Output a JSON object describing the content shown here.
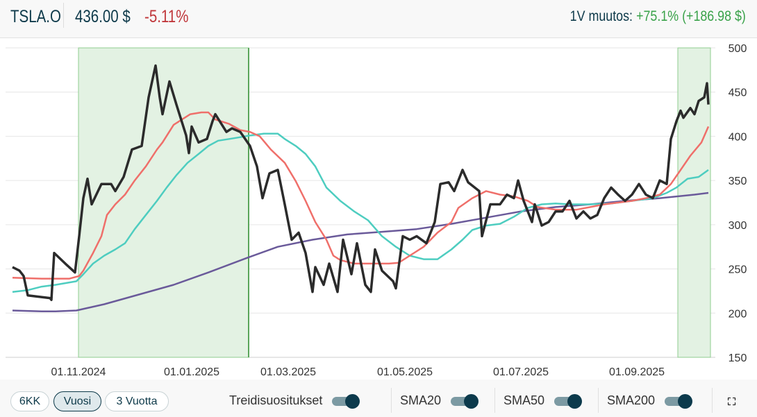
{
  "header": {
    "ticker": "TSLA.O",
    "price": "436.00 $",
    "change": "-5.11%",
    "year_change_label": "1V muutos:",
    "year_change_value": "+75.1% (+186.98 $)"
  },
  "colors": {
    "price": "#2b2b2b",
    "sma20": "#ef6f6a",
    "sma50": "#4ecdc0",
    "sma200": "#6a5a9a",
    "recommendation": "#cfe8cf",
    "up": "#3aa24a",
    "down": "#c0363a"
  },
  "controls": {
    "ranges": [
      {
        "label": "6KK",
        "active": false
      },
      {
        "label": "Vuosi",
        "active": true
      },
      {
        "label": "3 Vuotta",
        "active": false
      }
    ],
    "toggles": [
      {
        "label": "Treidisuositukset",
        "on": true
      },
      {
        "label": "SMA20",
        "on": true
      },
      {
        "label": "SMA50",
        "on": true
      },
      {
        "label": "SMA200",
        "on": true
      }
    ],
    "fullscreen_icon": "expand-icon"
  },
  "chart_data": {
    "type": "line",
    "x_unit": "trading day index",
    "xlim": [
      -2.5,
      253
    ],
    "ylim": [
      150,
      500
    ],
    "y_ticks": [
      "500",
      "450",
      "400",
      "350",
      "300",
      "250",
      "200",
      "150"
    ],
    "x_ticks": [
      {
        "label": "01.11.2024",
        "x": 23.75
      },
      {
        "label": "01.01.2025",
        "x": 64.5
      },
      {
        "label": "01.03.2025",
        "x": 99.25
      },
      {
        "label": "01.05.2025",
        "x": 141.25
      },
      {
        "label": "01.07.2025",
        "x": 183
      },
      {
        "label": "01.09.2025",
        "x": 224.75
      }
    ],
    "recommendation_periods": [
      [
        23.75,
        85
      ],
      [
        239.5,
        251.25
      ]
    ],
    "series": [
      {
        "name": "SMA200",
        "color": "#6a5a9a",
        "points": [
          [
            0,
            203
          ],
          [
            10.5,
            202
          ],
          [
            15.5,
            202
          ],
          [
            23,
            203
          ],
          [
            33,
            210
          ],
          [
            45.5,
            221
          ],
          [
            58,
            232
          ],
          [
            70.5,
            246
          ],
          [
            84,
            262
          ],
          [
            95.5,
            275
          ],
          [
            108,
            283
          ],
          [
            120.5,
            289
          ],
          [
            133,
            292
          ],
          [
            145.5,
            295
          ],
          [
            158,
            301
          ],
          [
            170.5,
            308
          ],
          [
            183,
            315
          ],
          [
            195.5,
            320
          ],
          [
            208,
            323
          ],
          [
            220.5,
            327
          ],
          [
            233,
            330
          ],
          [
            245.5,
            334
          ],
          [
            250.5,
            336
          ]
        ]
      },
      {
        "name": "SMA50",
        "color": "#4ecdc0",
        "points": [
          [
            0,
            224
          ],
          [
            5.5,
            226
          ],
          [
            10.5,
            230
          ],
          [
            15.5,
            232
          ],
          [
            23,
            236
          ],
          [
            25.5,
            244
          ],
          [
            29,
            256
          ],
          [
            33,
            265
          ],
          [
            37,
            272
          ],
          [
            40.5,
            279
          ],
          [
            44,
            295
          ],
          [
            48,
            311
          ],
          [
            52,
            327
          ],
          [
            55.5,
            342
          ],
          [
            59,
            356
          ],
          [
            63,
            370
          ],
          [
            67,
            380
          ],
          [
            70.5,
            389
          ],
          [
            74,
            395
          ],
          [
            78,
            397
          ],
          [
            82,
            399
          ],
          [
            85.5,
            401
          ],
          [
            90.5,
            403
          ],
          [
            95.5,
            403
          ],
          [
            98,
            397
          ],
          [
            102,
            389
          ],
          [
            105.5,
            380
          ],
          [
            109,
            366
          ],
          [
            113,
            342
          ],
          [
            118,
            327
          ],
          [
            123,
            315
          ],
          [
            128,
            305
          ],
          [
            133,
            287
          ],
          [
            138,
            275
          ],
          [
            143,
            265
          ],
          [
            148,
            261
          ],
          [
            153,
            261
          ],
          [
            158,
            272
          ],
          [
            162,
            283
          ],
          [
            165.5,
            294
          ],
          [
            170.5,
            299
          ],
          [
            175.5,
            301
          ],
          [
            180.5,
            309
          ],
          [
            185.5,
            319
          ],
          [
            190.5,
            323
          ],
          [
            195.5,
            324
          ],
          [
            200.5,
            323
          ],
          [
            208,
            323
          ],
          [
            215.5,
            324
          ],
          [
            223,
            327
          ],
          [
            230.5,
            330
          ],
          [
            235.5,
            336
          ],
          [
            239,
            342
          ],
          [
            243,
            352
          ],
          [
            247,
            354
          ],
          [
            250.5,
            362
          ]
        ]
      },
      {
        "name": "SMA20",
        "color": "#ef6f6a",
        "points": [
          [
            0,
            240
          ],
          [
            10.5,
            239
          ],
          [
            20.5,
            239
          ],
          [
            24,
            242
          ],
          [
            25.5,
            248
          ],
          [
            29,
            268
          ],
          [
            32,
            287
          ],
          [
            34,
            311
          ],
          [
            37,
            323
          ],
          [
            40.5,
            334
          ],
          [
            44,
            350
          ],
          [
            48,
            366
          ],
          [
            52,
            385
          ],
          [
            54,
            393
          ],
          [
            58,
            413
          ],
          [
            61,
            419
          ],
          [
            64,
            425
          ],
          [
            68,
            427
          ],
          [
            70.5,
            427
          ],
          [
            73,
            419
          ],
          [
            78,
            414
          ],
          [
            82,
            407
          ],
          [
            85.5,
            405
          ],
          [
            89,
            400
          ],
          [
            93,
            385
          ],
          [
            98,
            370
          ],
          [
            102,
            349
          ],
          [
            105.5,
            327
          ],
          [
            109,
            303
          ],
          [
            113,
            283
          ],
          [
            115.5,
            265
          ],
          [
            118,
            260
          ],
          [
            123,
            256
          ],
          [
            130.5,
            256
          ],
          [
            135.5,
            256
          ],
          [
            139,
            257
          ],
          [
            143,
            265
          ],
          [
            148,
            275
          ],
          [
            153,
            291
          ],
          [
            158,
            303
          ],
          [
            160.5,
            319
          ],
          [
            165.5,
            330
          ],
          [
            170.5,
            338
          ],
          [
            175.5,
            334
          ],
          [
            180.5,
            332
          ],
          [
            185.5,
            327
          ],
          [
            189,
            320
          ],
          [
            195.5,
            317
          ],
          [
            203,
            317
          ],
          [
            208,
            320
          ],
          [
            213,
            323
          ],
          [
            218,
            325
          ],
          [
            223,
            327
          ],
          [
            228,
            330
          ],
          [
            233,
            334
          ],
          [
            237,
            346
          ],
          [
            240.5,
            362
          ],
          [
            244,
            378
          ],
          [
            248,
            393
          ],
          [
            250.5,
            411
          ]
        ]
      },
      {
        "name": "TSLA.O",
        "color": "#2b2b2b",
        "points": [
          [
            0,
            252
          ],
          [
            2.5,
            248
          ],
          [
            4,
            242
          ],
          [
            5.5,
            220
          ],
          [
            13.5,
            217
          ],
          [
            14,
            215
          ],
          [
            15,
            268
          ],
          [
            19,
            256
          ],
          [
            22.5,
            246
          ],
          [
            24,
            287
          ],
          [
            25.5,
            330
          ],
          [
            27,
            352
          ],
          [
            28.5,
            323
          ],
          [
            32,
            346
          ],
          [
            35.5,
            346
          ],
          [
            37,
            338
          ],
          [
            40,
            354
          ],
          [
            43,
            385
          ],
          [
            46.5,
            389
          ],
          [
            49,
            444
          ],
          [
            51.5,
            480
          ],
          [
            53,
            444
          ],
          [
            54,
            425
          ],
          [
            56.5,
            462
          ],
          [
            59,
            436
          ],
          [
            62.5,
            401
          ],
          [
            63.5,
            381
          ],
          [
            64.5,
            411
          ],
          [
            67,
            393
          ],
          [
            70,
            397
          ],
          [
            72,
            417
          ],
          [
            73,
            425
          ],
          [
            77,
            405
          ],
          [
            79,
            409
          ],
          [
            82,
            405
          ],
          [
            85.5,
            389
          ],
          [
            88,
            366
          ],
          [
            90,
            330
          ],
          [
            92.5,
            358
          ],
          [
            95.5,
            362
          ],
          [
            98,
            323
          ],
          [
            100.5,
            283
          ],
          [
            103,
            291
          ],
          [
            105.5,
            268
          ],
          [
            108,
            224
          ],
          [
            109,
            252
          ],
          [
            112,
            232
          ],
          [
            114,
            256
          ],
          [
            117,
            224
          ],
          [
            119,
            283
          ],
          [
            122,
            244
          ],
          [
            124,
            279
          ],
          [
            127,
            232
          ],
          [
            129,
            224
          ],
          [
            130.5,
            272
          ],
          [
            133,
            248
          ],
          [
            137,
            236
          ],
          [
            138,
            228
          ],
          [
            140.5,
            287
          ],
          [
            143,
            283
          ],
          [
            145.5,
            287
          ],
          [
            149,
            279
          ],
          [
            152,
            303
          ],
          [
            154,
            346
          ],
          [
            157,
            348
          ],
          [
            159,
            338
          ],
          [
            162,
            362
          ],
          [
            164,
            348
          ],
          [
            168,
            338
          ],
          [
            169,
            287
          ],
          [
            172,
            323
          ],
          [
            175.5,
            323
          ],
          [
            178,
            334
          ],
          [
            180.5,
            330
          ],
          [
            182,
            350
          ],
          [
            184,
            327
          ],
          [
            187,
            303
          ],
          [
            188,
            323
          ],
          [
            190.5,
            299
          ],
          [
            193,
            303
          ],
          [
            195.5,
            315
          ],
          [
            198,
            315
          ],
          [
            200.5,
            327
          ],
          [
            203,
            307
          ],
          [
            205.5,
            315
          ],
          [
            208,
            307
          ],
          [
            210.5,
            311
          ],
          [
            213,
            330
          ],
          [
            215.5,
            342
          ],
          [
            218,
            334
          ],
          [
            220.5,
            327
          ],
          [
            223,
            334
          ],
          [
            225.5,
            346
          ],
          [
            228,
            334
          ],
          [
            230.5,
            330
          ],
          [
            233,
            350
          ],
          [
            235.5,
            346
          ],
          [
            237,
            397
          ],
          [
            239,
            417
          ],
          [
            240.5,
            429
          ],
          [
            241.5,
            421
          ],
          [
            244,
            432
          ],
          [
            245.5,
            425
          ],
          [
            247,
            440
          ],
          [
            249,
            444
          ],
          [
            250,
            460
          ],
          [
            250.5,
            436
          ]
        ]
      }
    ]
  }
}
